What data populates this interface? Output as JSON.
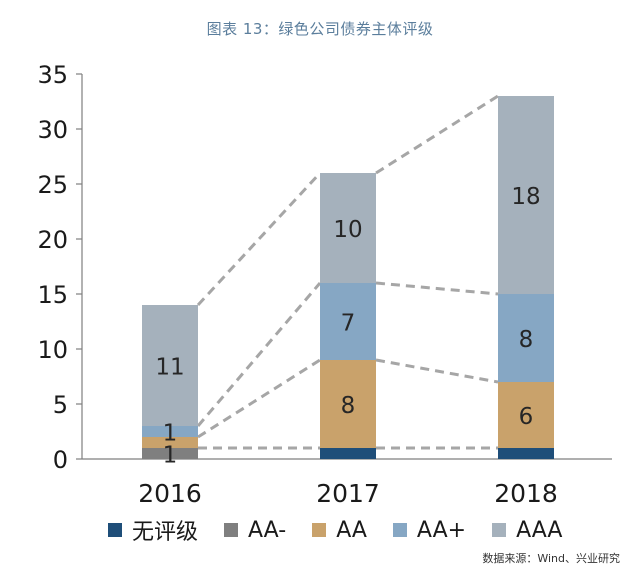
{
  "title": "图表 13：绿色公司债券主体评级",
  "source": "数据来源：Wind、兴业研究",
  "chart_data": {
    "type": "bar",
    "stacked": true,
    "title": "图表 13：绿色公司债券主体评级",
    "xlabel": "",
    "ylabel": "",
    "categories": [
      "2016",
      "2017",
      "2018"
    ],
    "ylim": [
      0,
      35
    ],
    "yticks": [
      0,
      5,
      10,
      15,
      20,
      25,
      30,
      35
    ],
    "series": [
      {
        "name": "无评级",
        "color": "#1f4e79",
        "values": [
          0,
          1,
          1
        ],
        "labels": [
          null,
          null,
          null
        ]
      },
      {
        "name": "AA-",
        "color": "#7f7f7f",
        "values": [
          1,
          0,
          0
        ],
        "labels": [
          "1",
          null,
          null
        ]
      },
      {
        "name": "AA",
        "color": "#c9a26b",
        "values": [
          1,
          8,
          6
        ],
        "labels": [
          null,
          "8",
          "6"
        ]
      },
      {
        "name": "AA+",
        "color": "#86a7c4",
        "values": [
          1,
          7,
          8
        ],
        "labels": [
          "1",
          "7",
          "8"
        ]
      },
      {
        "name": "AAA",
        "color": "#a5b1bc",
        "values": [
          11,
          10,
          18
        ],
        "labels": [
          "11",
          "10",
          "18"
        ]
      }
    ],
    "legend_position": "bottom",
    "connector_lines": "dashed grey lines connect matching segment boundaries between adjacent bars"
  }
}
